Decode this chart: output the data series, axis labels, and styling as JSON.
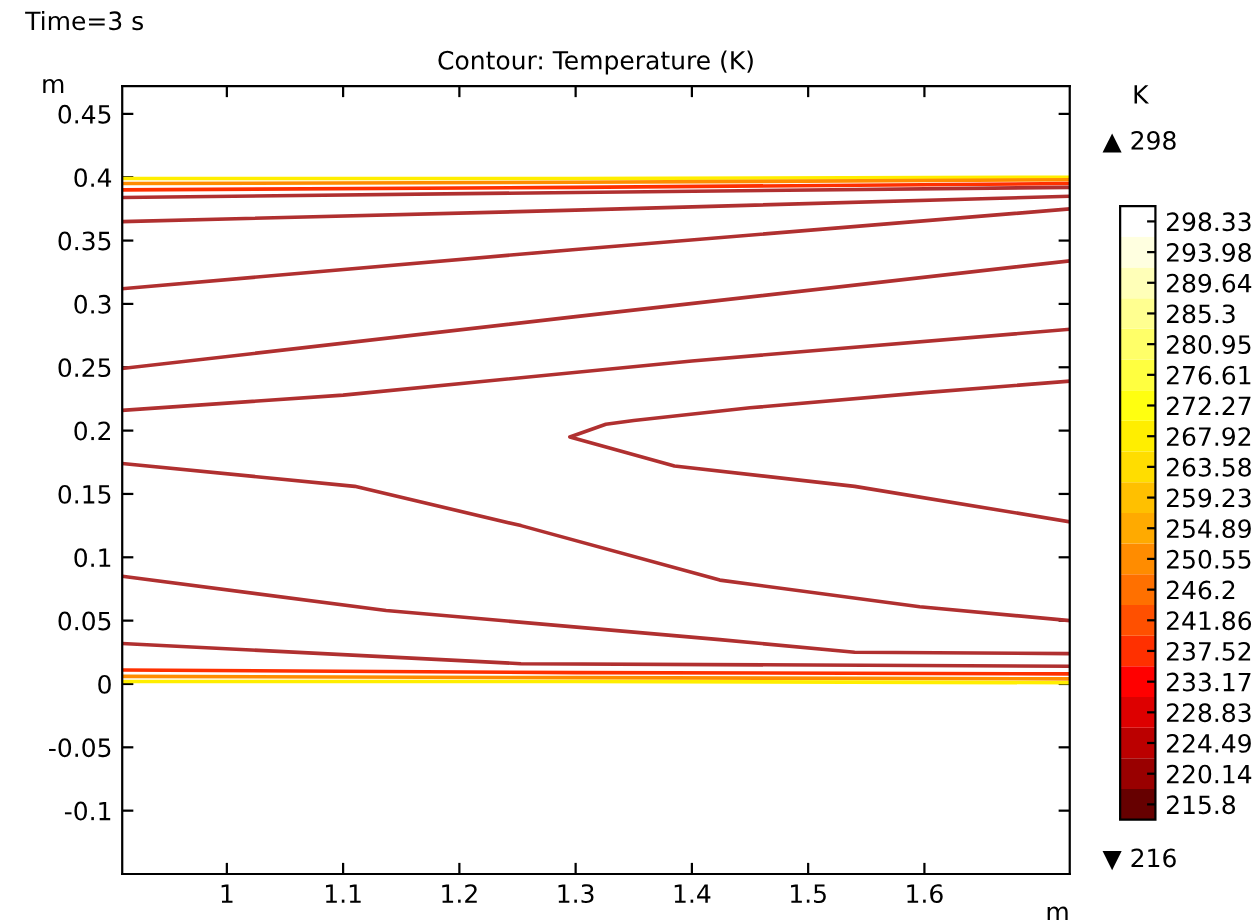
{
  "chart_data": {
    "type": "line",
    "title": "Contour: Temperature (K)",
    "xlabel": "m",
    "ylabel": "m",
    "clabel": "K",
    "annotations": [
      "Time=3 s",
      "▲ 298",
      "▼ 216"
    ],
    "xlim": [
      0.91,
      1.725
    ],
    "ylim": [
      -0.15,
      0.472
    ],
    "xticks": [
      1,
      1.1,
      1.2,
      1.3,
      1.4,
      1.5,
      1.6
    ],
    "yticks": [
      -0.1,
      -0.05,
      0,
      0.05,
      0.1,
      0.15,
      0.2,
      0.25,
      0.3,
      0.35,
      0.4,
      0.45
    ],
    "grid": false,
    "legend": false,
    "marker": "none",
    "line_style": "solid",
    "clim": [
      213.63,
      300.5
    ],
    "cticks": [
      298.33,
      293.98,
      289.64,
      285.3,
      280.95,
      276.61,
      272.27,
      267.92,
      263.58,
      259.23,
      254.89,
      250.55,
      246.2,
      241.86,
      237.52,
      233.17,
      228.83,
      224.49,
      220.14,
      215.8
    ],
    "colors": [
      "#ffffff",
      "#ffffe0",
      "#ffffb8",
      "#ffff90",
      "#ffff68",
      "#ffff40",
      "#ffff10",
      "#ffee00",
      "#ffdd00",
      "#ffc000",
      "#ffaa00",
      "#ff8c00",
      "#ff7000",
      "#ff5000",
      "#ff3000",
      "#ff0000",
      "#dd0000",
      "#bb0000",
      "#990000",
      "#660000"
    ],
    "series": [
      {
        "color": "#ffee00",
        "x": [
          0.91,
          1.3,
          1.725
        ],
        "values": [
          0.399,
          0.399,
          0.4
        ]
      },
      {
        "color": "#ff8c00",
        "x": [
          0.91,
          1.3,
          1.725
        ],
        "values": [
          0.395,
          0.396,
          0.398
        ]
      },
      {
        "color": "#ff3000",
        "x": [
          0.91,
          1.3,
          1.725
        ],
        "values": [
          0.39,
          0.392,
          0.395
        ]
      },
      {
        "color": "#b03030",
        "x": [
          0.91,
          1.3,
          1.725
        ],
        "values": [
          0.384,
          0.388,
          0.392
        ]
      },
      {
        "color": "#b03030",
        "x": [
          0.91,
          1.3,
          1.725
        ],
        "values": [
          0.365,
          0.374,
          0.385
        ]
      },
      {
        "color": "#b03030",
        "x": [
          0.91,
          1.3,
          1.725
        ],
        "values": [
          0.312,
          0.343,
          0.375
        ]
      },
      {
        "color": "#b03030",
        "x": [
          0.91,
          1.3,
          1.725
        ],
        "values": [
          0.249,
          0.29,
          0.334
        ]
      },
      {
        "color": "#b03030",
        "x": [
          0.91,
          1.1,
          1.4,
          1.725
        ],
        "values": [
          0.216,
          0.228,
          0.255,
          0.28
        ]
      },
      {
        "color": "#b03030",
        "x": [
          1.725,
          1.6,
          1.45,
          1.35,
          1.326,
          1.295,
          1.33,
          1.385,
          1.54,
          1.725
        ],
        "values": [
          0.239,
          0.23,
          0.218,
          0.208,
          0.205,
          0.195,
          0.186,
          0.172,
          0.156,
          0.128
        ]
      },
      {
        "color": "#b03030",
        "x": [
          0.91,
          1.11,
          1.253,
          1.424,
          1.596,
          1.725
        ],
        "values": [
          0.174,
          0.156,
          0.125,
          0.082,
          0.061,
          0.05
        ]
      },
      {
        "color": "#b03030",
        "x": [
          0.91,
          1.137,
          1.424,
          1.54,
          1.725
        ],
        "values": [
          0.085,
          0.058,
          0.035,
          0.025,
          0.024
        ]
      },
      {
        "color": "#b03030",
        "x": [
          0.91,
          1.253,
          1.725
        ],
        "values": [
          0.032,
          0.016,
          0.014
        ]
      },
      {
        "color": "#ff3000",
        "x": [
          0.91,
          1.3,
          1.725
        ],
        "values": [
          0.011,
          0.009,
          0.008
        ]
      },
      {
        "color": "#ff8c00",
        "x": [
          0.91,
          1.3,
          1.725
        ],
        "values": [
          0.006,
          0.005,
          0.004
        ]
      },
      {
        "color": "#ffee00",
        "x": [
          0.91,
          1.3,
          1.725
        ],
        "values": [
          0.002,
          0.002,
          0.001
        ]
      }
    ]
  }
}
